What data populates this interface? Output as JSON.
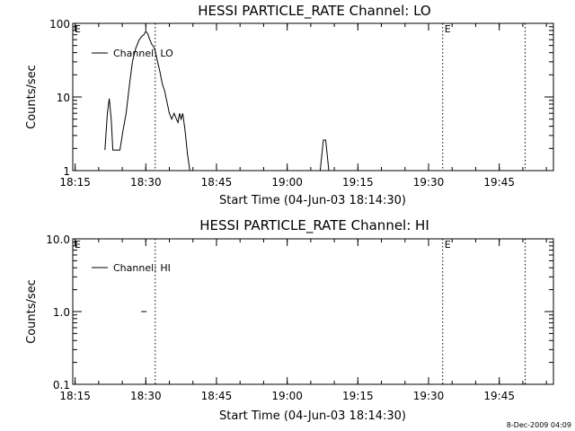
{
  "stamp": "8-Dec-2009 04:09",
  "chart_data": [
    {
      "type": "line",
      "title": "HESSI PARTICLE_RATE Channel: LO",
      "xlabel": "Start Time (04-Jun-03 18:14:30)",
      "ylabel": "Counts/sec",
      "yscale": "log",
      "xlim": [
        "18:14:30",
        "19:56:30"
      ],
      "ylim": [
        1,
        100
      ],
      "x_ticks": [
        "18:15",
        "18:30",
        "18:45",
        "19:00",
        "19:15",
        "19:30",
        "19:45"
      ],
      "y_ticks": [
        "1",
        "10",
        "100"
      ],
      "legend": {
        "entries": [
          "Channel: LO"
        ],
        "placement": "top-left"
      },
      "markers": [
        {
          "time": "18:14:30",
          "label": "E"
        },
        {
          "time": "18:32:00",
          "label": ""
        },
        {
          "time": "19:33:00",
          "label": "E"
        },
        {
          "time": "19:50:30",
          "label": ""
        }
      ],
      "series": [
        {
          "name": "Channel: LO",
          "segments": [
            [
              [
                "18:21:20",
                1.9
              ],
              [
                "18:21:50",
                6.0
              ],
              [
                "18:22:15",
                9.5
              ],
              [
                "18:22:40",
                5.0
              ],
              [
                "18:23:00",
                1.9
              ],
              [
                "18:24:30",
                1.9
              ],
              [
                "18:25:10",
                3.5
              ],
              [
                "18:25:50",
                6.0
              ],
              [
                "18:26:30",
                14
              ],
              [
                "18:27:10",
                30
              ],
              [
                "18:27:50",
                45
              ],
              [
                "18:28:30",
                58
              ],
              [
                "18:29:05",
                66
              ],
              [
                "18:29:35",
                70
              ],
              [
                "18:30:00",
                78
              ],
              [
                "18:30:25",
                72
              ],
              [
                "18:30:50",
                60
              ],
              [
                "18:31:15",
                52
              ],
              [
                "18:31:40",
                48
              ],
              [
                "18:32:00",
                42
              ],
              [
                "18:32:30",
                30
              ],
              [
                "18:33:00",
                22
              ],
              [
                "18:33:30",
                15
              ],
              [
                "18:34:00",
                12
              ],
              [
                "18:34:30",
                8.5
              ],
              [
                "18:35:00",
                6
              ],
              [
                "18:35:30",
                5
              ],
              [
                "18:36:00",
                6
              ],
              [
                "18:36:30",
                5
              ],
              [
                "18:36:50",
                4.5
              ],
              [
                "18:37:10",
                6
              ],
              [
                "18:37:30",
                5
              ],
              [
                "18:37:50",
                6
              ],
              [
                "18:38:20",
                3.5
              ],
              [
                "18:38:50",
                1.7
              ],
              [
                "18:39:20",
                1
              ]
            ],
            [
              [
                "19:07:00",
                1
              ],
              [
                "19:07:40",
                2.6
              ],
              [
                "19:08:10",
                2.6
              ],
              [
                "19:08:50",
                1
              ]
            ]
          ]
        }
      ]
    },
    {
      "type": "line",
      "title": "HESSI PARTICLE_RATE Channel: HI",
      "xlabel": "Start Time (04-Jun-03 18:14:30)",
      "ylabel": "Counts/sec",
      "yscale": "log",
      "xlim": [
        "18:14:30",
        "19:56:30"
      ],
      "ylim": [
        0.1,
        10
      ],
      "x_ticks": [
        "18:15",
        "18:30",
        "18:45",
        "19:00",
        "19:15",
        "19:30",
        "19:45"
      ],
      "y_ticks": [
        "0.1",
        "1.0",
        "10.0"
      ],
      "legend": {
        "entries": [
          "Channel: HI"
        ],
        "placement": "top-left"
      },
      "markers": [
        {
          "time": "18:14:30",
          "label": "E"
        },
        {
          "time": "18:32:00",
          "label": ""
        },
        {
          "time": "19:33:00",
          "label": "E"
        },
        {
          "time": "19:50:30",
          "label": ""
        }
      ],
      "series": [
        {
          "name": "Channel: HI",
          "segments": [
            [
              [
                "18:29:00",
                1.0
              ],
              [
                "18:30:10",
                1.0
              ]
            ]
          ]
        }
      ]
    }
  ]
}
